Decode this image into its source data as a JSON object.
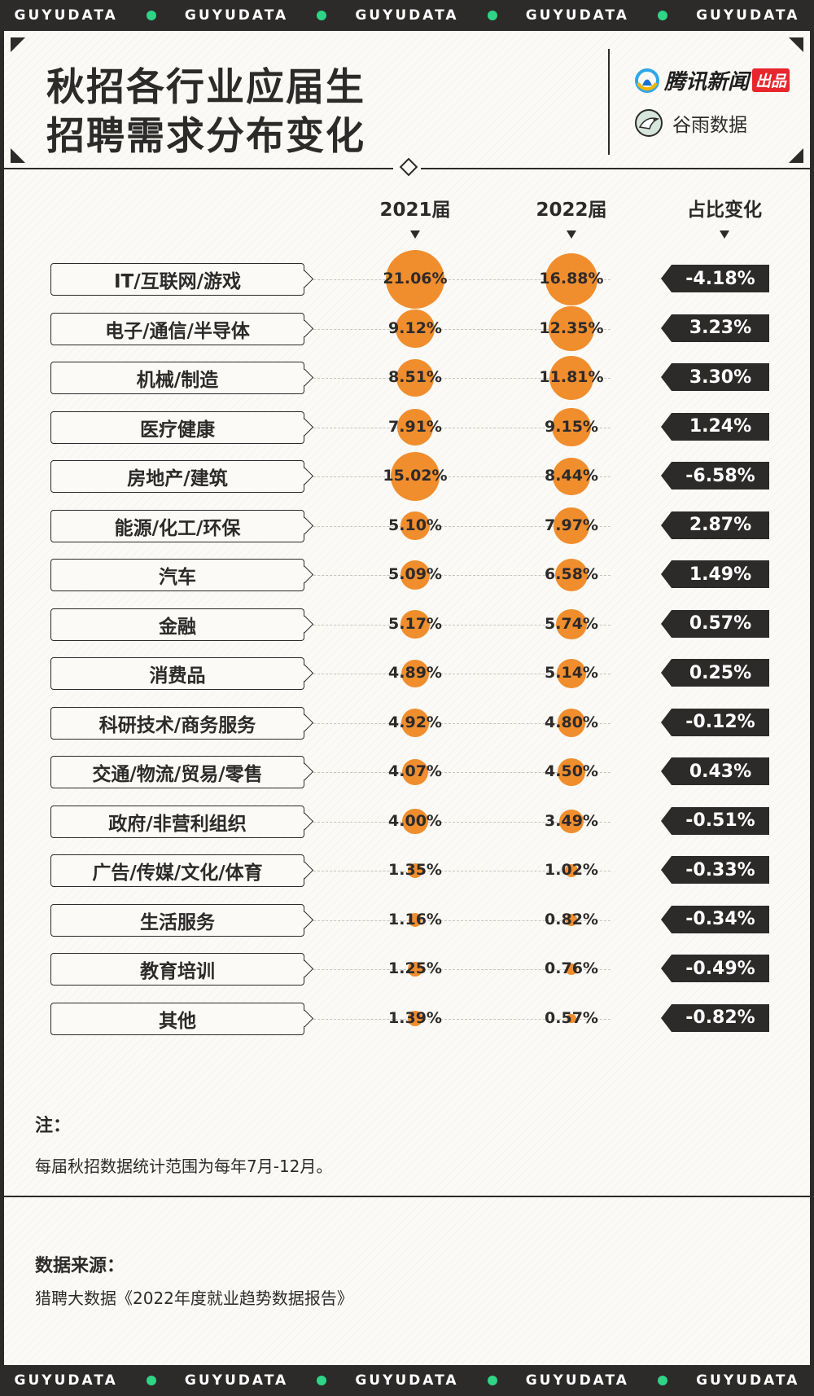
{
  "strip": {
    "label": "GUYUDATA"
  },
  "header": {
    "title_line1": "秋招各行业应届生",
    "title_line2": "招聘需求分布变化"
  },
  "brand": {
    "tencent_name": "腾讯新闻",
    "tencent_tag": "出品",
    "guyu_name": "谷雨数据"
  },
  "columns": {
    "y2021": "2021届",
    "y2022": "2022届",
    "change": "占比变化"
  },
  "chart_data": {
    "type": "table",
    "series": [
      {
        "name": "2021届",
        "values": [
          21.06,
          9.12,
          8.51,
          7.91,
          15.02,
          5.1,
          5.09,
          5.17,
          4.89,
          4.92,
          4.07,
          4.0,
          1.35,
          1.16,
          1.25,
          1.39
        ]
      },
      {
        "name": "2022届",
        "values": [
          16.88,
          12.35,
          11.81,
          9.15,
          8.44,
          7.97,
          6.58,
          5.74,
          5.14,
          4.8,
          4.5,
          3.49,
          1.02,
          0.82,
          0.76,
          0.57
        ]
      },
      {
        "name": "占比变化",
        "values": [
          -4.18,
          3.23,
          3.3,
          1.24,
          -6.58,
          2.87,
          1.49,
          0.57,
          0.25,
          -0.12,
          0.43,
          -0.51,
          -0.33,
          -0.34,
          -0.49,
          -0.82
        ]
      }
    ],
    "rows": [
      {
        "category": "IT/互联网/游戏",
        "y2021": "21.06%",
        "y2022": "16.88%",
        "change": "-4.18%"
      },
      {
        "category": "电子/通信/半导体",
        "y2021": "9.12%",
        "y2022": "12.35%",
        "change": "3.23%"
      },
      {
        "category": "机械/制造",
        "y2021": "8.51%",
        "y2022": "11.81%",
        "change": "3.30%"
      },
      {
        "category": "医疗健康",
        "y2021": "7.91%",
        "y2022": "9.15%",
        "change": "1.24%"
      },
      {
        "category": "房地产/建筑",
        "y2021": "15.02%",
        "y2022": "8.44%",
        "change": "-6.58%"
      },
      {
        "category": "能源/化工/环保",
        "y2021": "5.10%",
        "y2022": "7.97%",
        "change": "2.87%"
      },
      {
        "category": "汽车",
        "y2021": "5.09%",
        "y2022": "6.58%",
        "change": "1.49%"
      },
      {
        "category": "金融",
        "y2021": "5.17%",
        "y2022": "5.74%",
        "change": "0.57%"
      },
      {
        "category": "消费品",
        "y2021": "4.89%",
        "y2022": "5.14%",
        "change": "0.25%"
      },
      {
        "category": "科研技术/商务服务",
        "y2021": "4.92%",
        "y2022": "4.80%",
        "change": "-0.12%"
      },
      {
        "category": "交通/物流/贸易/零售",
        "y2021": "4.07%",
        "y2022": "4.50%",
        "change": "0.43%"
      },
      {
        "category": "政府/非营利组织",
        "y2021": "4.00%",
        "y2022": "3.49%",
        "change": "-0.51%"
      },
      {
        "category": "广告/传媒/文化/体育",
        "y2021": "1.35%",
        "y2022": "1.02%",
        "change": "-0.33%"
      },
      {
        "category": "生活服务",
        "y2021": "1.16%",
        "y2022": "0.82%",
        "change": "-0.34%"
      },
      {
        "category": "教育培训",
        "y2021": "1.25%",
        "y2022": "0.76%",
        "change": "-0.49%"
      },
      {
        "category": "其他",
        "y2021": "1.39%",
        "y2022": "0.57%",
        "change": "-0.82%"
      }
    ]
  },
  "note": {
    "title": "注：",
    "body": "每届秋招数据统计范围为每年7月-12月。"
  },
  "source": {
    "title": "数据来源：",
    "body": "猎聘大数据《2022年度就业趋势数据报告》"
  },
  "colors": {
    "bubble": "#f08e2e",
    "dark": "#2d2a2a",
    "accent_green": "#2fd486"
  }
}
